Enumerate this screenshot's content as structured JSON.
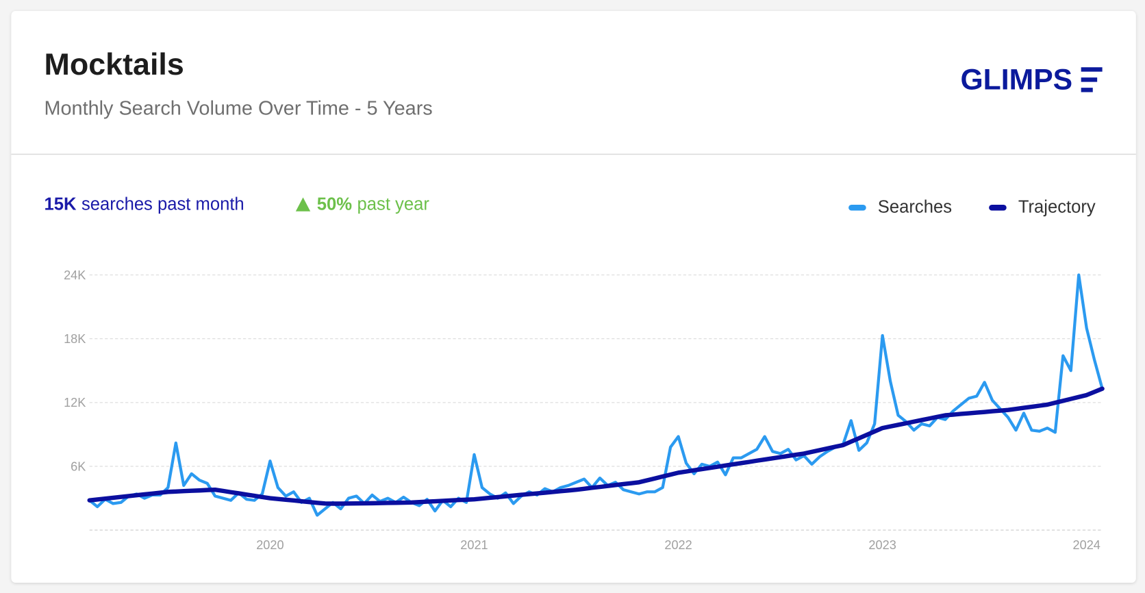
{
  "header": {
    "title": "Mocktails",
    "subtitle": "Monthly Search Volume Over Time - 5 Years",
    "logo": "GLIMPS"
  },
  "stats": [
    {
      "value": "15K",
      "text": "searches past month"
    },
    {
      "value": "50%",
      "text": "past year"
    }
  ],
  "chart_data": {
    "type": "line",
    "categories": [
      null,
      null,
      null,
      null,
      null,
      null,
      null,
      null,
      null,
      null,
      null,
      null,
      null,
      null,
      null,
      null,
      null,
      null,
      null,
      null,
      null,
      null,
      null,
      "2020",
      null,
      null,
      null,
      null,
      null,
      null,
      null,
      null,
      null,
      null,
      null,
      null,
      null,
      null,
      null,
      null,
      null,
      null,
      null,
      null,
      null,
      null,
      null,
      null,
      null,
      "2021",
      null,
      null,
      null,
      null,
      null,
      null,
      null,
      null,
      null,
      null,
      null,
      null,
      null,
      null,
      null,
      null,
      null,
      null,
      null,
      null,
      null,
      null,
      null,
      null,
      null,
      "2022",
      null,
      null,
      null,
      null,
      null,
      null,
      null,
      null,
      null,
      null,
      null,
      null,
      null,
      null,
      null,
      null,
      null,
      null,
      null,
      null,
      null,
      null,
      null,
      null,
      null,
      "2023",
      null,
      null,
      null,
      null,
      null,
      null,
      null,
      null,
      null,
      null,
      null,
      null,
      null,
      null,
      null,
      null,
      null,
      null,
      null,
      null,
      null,
      null,
      null,
      null,
      null,
      "2024",
      null,
      null
    ],
    "series": [
      {
        "name": "Searches",
        "color": "#2b9af0",
        "values": [
          2800,
          2200,
          2900,
          2500,
          2600,
          3200,
          3400,
          3000,
          3300,
          3300,
          4000,
          8200,
          4200,
          5300,
          4700,
          4400,
          3200,
          3000,
          2800,
          3500,
          2900,
          2800,
          3400,
          6500,
          4000,
          3200,
          3600,
          2600,
          3000,
          1400,
          2000,
          2600,
          2000,
          3000,
          3200,
          2500,
          3300,
          2700,
          3000,
          2600,
          3100,
          2600,
          2300,
          2900,
          1800,
          2800,
          2200,
          3000,
          2600,
          7100,
          4000,
          3400,
          3000,
          3500,
          2500,
          3200,
          3600,
          3300,
          3900,
          3600,
          4000,
          4200,
          4500,
          4800,
          4000,
          4900,
          4200,
          4500,
          3800,
          3600,
          3400,
          3600,
          3600,
          4000,
          7800,
          8800,
          6300,
          5300,
          6200,
          6000,
          6400,
          5200,
          6800,
          6800,
          7200,
          7600,
          8800,
          7400,
          7200,
          7600,
          6600,
          7000,
          6200,
          6900,
          7400,
          7800,
          8100,
          10300,
          7500,
          8200,
          10000,
          18300,
          14000,
          10800,
          10200,
          9400,
          10000,
          9800,
          10600,
          10400,
          11200,
          11800,
          12400,
          12600,
          13900,
          12200,
          11400,
          10600,
          9400,
          11000,
          9400,
          9300,
          9600,
          9200,
          16400,
          15000,
          24000,
          19000,
          16000,
          13300
        ]
      },
      {
        "name": "Trajectory",
        "color": "#0b0f9f",
        "values": [
          2800,
          2880,
          2960,
          3040,
          3120,
          3200,
          3280,
          3360,
          3440,
          3520,
          3600,
          3630,
          3670,
          3700,
          3730,
          3770,
          3800,
          3690,
          3570,
          3460,
          3340,
          3230,
          3110,
          3000,
          2930,
          2860,
          2790,
          2710,
          2640,
          2570,
          2500,
          2490,
          2490,
          2500,
          2510,
          2520,
          2530,
          2540,
          2560,
          2570,
          2580,
          2600,
          2640,
          2680,
          2710,
          2750,
          2790,
          2830,
          2860,
          2900,
          2970,
          3040,
          3110,
          3180,
          3250,
          3320,
          3390,
          3450,
          3520,
          3590,
          3660,
          3730,
          3800,
          3890,
          3980,
          4060,
          4150,
          4240,
          4330,
          4410,
          4500,
          4680,
          4860,
          5040,
          5220,
          5400,
          5510,
          5630,
          5740,
          5850,
          5960,
          6080,
          6190,
          6300,
          6410,
          6530,
          6640,
          6750,
          6860,
          6980,
          7090,
          7200,
          7360,
          7520,
          7680,
          7840,
          8000,
          8320,
          8640,
          8960,
          9280,
          9600,
          9750,
          9900,
          10050,
          10200,
          10350,
          10500,
          10650,
          10800,
          10860,
          10930,
          10990,
          11050,
          11110,
          11180,
          11240,
          11300,
          11400,
          11500,
          11600,
          11700,
          11800,
          11980,
          12160,
          12340,
          12520,
          12700,
          13000,
          13300
        ]
      }
    ],
    "ylim": [
      0,
      24000
    ],
    "yticks": [
      {
        "value": 6000,
        "label": "6K"
      },
      {
        "value": 12000,
        "label": "12K"
      },
      {
        "value": 18000,
        "label": "18K"
      },
      {
        "value": 24000,
        "label": "24K"
      }
    ],
    "grid": true
  }
}
